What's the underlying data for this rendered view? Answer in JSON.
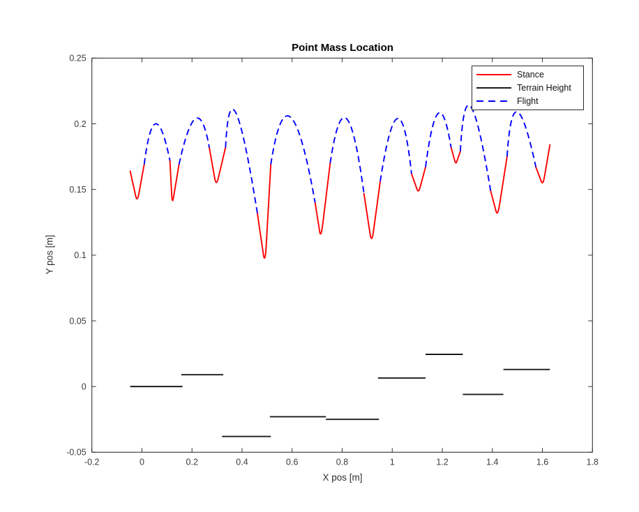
{
  "chart_data": {
    "type": "line",
    "title": "Point Mass Location",
    "xlabel": "X pos [m]",
    "ylabel": "Y pos [m]",
    "xlim": [
      -0.2,
      1.8
    ],
    "ylim": [
      -0.05,
      0.25
    ],
    "grid": false,
    "axis_color": "#333333",
    "xticks": {
      "values": [
        -0.2,
        0,
        0.2,
        0.4,
        0.6,
        0.8,
        1,
        1.2,
        1.4,
        1.6,
        1.8
      ],
      "labels": [
        "-0.2",
        "0",
        "0.2",
        "0.4",
        "0.6",
        "0.8",
        "1",
        "1.2",
        "1.4",
        "1.6",
        "1.8"
      ]
    },
    "yticks": {
      "values": [
        -0.05,
        0,
        0.05,
        0.1,
        0.15,
        0.2,
        0.25
      ],
      "labels": [
        "-0.05",
        "0",
        "0.05",
        "0.1",
        "0.15",
        "0.2",
        "0.25"
      ]
    },
    "legend": {
      "position": "top-right",
      "entries": [
        {
          "label": "Stance",
          "color": "#ff0000",
          "dash": false
        },
        {
          "label": "Terrain Height",
          "color": "#1a1a1a",
          "dash": false
        },
        {
          "label": "Flight",
          "color": "#0000ff",
          "dash": true
        }
      ]
    },
    "series": [
      {
        "name": "Stance",
        "color": "#ff0000",
        "style": "solid",
        "shape": "v-stance",
        "segments": [
          [
            [
              -0.047,
              0.164
            ],
            [
              -0.019,
              0.14
            ],
            [
              0.009,
              0.169
            ]
          ],
          [
            [
              0.112,
              0.172
            ],
            [
              0.121,
              0.138
            ],
            [
              0.148,
              0.169
            ]
          ],
          [
            [
              0.269,
              0.182
            ],
            [
              0.297,
              0.152
            ],
            [
              0.334,
              0.182
            ]
          ],
          [
            [
              0.461,
              0.132
            ],
            [
              0.492,
              0.092
            ],
            [
              0.515,
              0.169
            ]
          ],
          [
            [
              0.692,
              0.14
            ],
            [
              0.715,
              0.112
            ],
            [
              0.752,
              0.17
            ]
          ],
          [
            [
              0.887,
              0.147
            ],
            [
              0.918,
              0.108
            ],
            [
              0.952,
              0.156
            ]
          ],
          [
            [
              1.077,
              0.162
            ],
            [
              1.105,
              0.147
            ],
            [
              1.133,
              0.167
            ]
          ],
          [
            [
              1.235,
              0.182
            ],
            [
              1.254,
              0.169
            ],
            [
              1.272,
              0.179
            ]
          ],
          [
            [
              1.393,
              0.149
            ],
            [
              1.421,
              0.129
            ],
            [
              1.459,
              0.175
            ]
          ],
          [
            [
              1.574,
              0.167
            ],
            [
              1.602,
              0.153
            ],
            [
              1.63,
              0.184
            ]
          ]
        ]
      },
      {
        "name": "Flight",
        "color": "#0000ff",
        "style": "dashed",
        "shape": "parabola",
        "segments": [
          [
            [
              0.009,
              0.169
            ],
            [
              0.055,
              0.2
            ],
            [
              0.112,
              0.172
            ]
          ],
          [
            [
              0.148,
              0.169
            ],
            [
              0.215,
              0.204
            ],
            [
              0.269,
              0.182
            ]
          ],
          [
            [
              0.334,
              0.182
            ],
            [
              0.376,
              0.208
            ],
            [
              0.461,
              0.132
            ]
          ],
          [
            [
              0.515,
              0.169
            ],
            [
              0.594,
              0.205
            ],
            [
              0.692,
              0.14
            ]
          ],
          [
            [
              0.752,
              0.17
            ],
            [
              0.817,
              0.204
            ],
            [
              0.887,
              0.147
            ]
          ],
          [
            [
              0.952,
              0.156
            ],
            [
              1.021,
              0.204
            ],
            [
              1.077,
              0.162
            ]
          ],
          [
            [
              1.133,
              0.167
            ],
            [
              1.184,
              0.208
            ],
            [
              1.235,
              0.182
            ]
          ],
          [
            [
              1.272,
              0.179
            ],
            [
              1.314,
              0.213
            ],
            [
              1.393,
              0.149
            ]
          ],
          [
            [
              1.459,
              0.175
            ],
            [
              1.5,
              0.209
            ],
            [
              1.574,
              0.167
            ]
          ]
        ]
      },
      {
        "name": "Terrain Height",
        "color": "#1a1a1a",
        "style": "solid",
        "shape": "steps",
        "segments": [
          {
            "x1": -0.047,
            "x2": 0.162,
            "y": 0.0
          },
          {
            "x1": 0.157,
            "x2": 0.325,
            "y": 0.009
          },
          {
            "x1": 0.32,
            "x2": 0.515,
            "y": -0.038
          },
          {
            "x1": 0.511,
            "x2": 0.735,
            "y": -0.023
          },
          {
            "x1": 0.735,
            "x2": 0.947,
            "y": -0.025
          },
          {
            "x1": 0.943,
            "x2": 1.133,
            "y": 0.0065
          },
          {
            "x1": 1.133,
            "x2": 1.282,
            "y": 0.0245
          },
          {
            "x1": 1.282,
            "x2": 1.444,
            "y": -0.006
          },
          {
            "x1": 1.444,
            "x2": 1.63,
            "y": 0.013
          }
        ]
      }
    ]
  }
}
